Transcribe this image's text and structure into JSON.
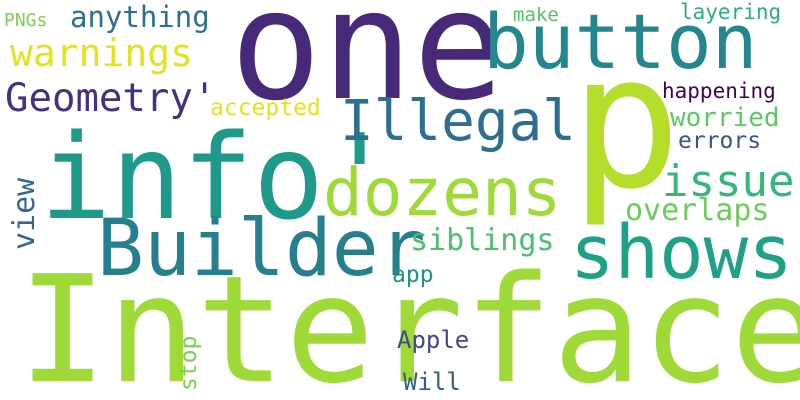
{
  "words": [
    {
      "text": "Interface",
      "color": "#a0da39",
      "orientation": "horizontal"
    },
    {
      "text": "one",
      "color": "#482878",
      "orientation": "horizontal"
    },
    {
      "text": "p",
      "color": "#b5de2b",
      "orientation": "horizontal"
    },
    {
      "text": "info'",
      "color": "#1f9a8a",
      "orientation": "horizontal"
    },
    {
      "text": "Builder",
      "color": "#277f8e",
      "orientation": "horizontal"
    },
    {
      "text": "button",
      "color": "#24868e",
      "orientation": "horizontal"
    },
    {
      "text": "dozens",
      "color": "#a0da39",
      "orientation": "horizontal"
    },
    {
      "text": "shows",
      "color": "#1fa187",
      "orientation": "horizontal"
    },
    {
      "text": "Illegal",
      "color": "#2e6e8e",
      "orientation": "horizontal"
    },
    {
      "text": "Geometry'",
      "color": "#46317e",
      "orientation": "horizontal"
    },
    {
      "text": "warnings",
      "color": "#e1e520",
      "orientation": "horizontal"
    },
    {
      "text": "issue",
      "color": "#35b779",
      "orientation": "horizontal"
    },
    {
      "text": "overlaps",
      "color": "#6ccd5a",
      "orientation": "horizontal"
    },
    {
      "text": "siblings",
      "color": "#4ac16d",
      "orientation": "horizontal"
    },
    {
      "text": "anything",
      "color": "#2c728e",
      "orientation": "horizontal"
    },
    {
      "text": "view",
      "color": "#31688e",
      "orientation": "vertical"
    },
    {
      "text": "accepted",
      "color": "#e5e419",
      "orientation": "horizontal"
    },
    {
      "text": "worried",
      "color": "#5ec962",
      "orientation": "horizontal"
    },
    {
      "text": "errors",
      "color": "#3b528b",
      "orientation": "horizontal"
    },
    {
      "text": "happening",
      "color": "#440154",
      "orientation": "horizontal"
    },
    {
      "text": "layering",
      "color": "#29af7f",
      "orientation": "horizontal"
    },
    {
      "text": "make",
      "color": "#54c568",
      "orientation": "horizontal"
    },
    {
      "text": "PNGs",
      "color": "#7ad151",
      "orientation": "horizontal"
    },
    {
      "text": "app",
      "color": "#21918c",
      "orientation": "horizontal"
    },
    {
      "text": "Apple",
      "color": "#3e4a89",
      "orientation": "horizontal"
    },
    {
      "text": "Will",
      "color": "#365c8d",
      "orientation": "horizontal"
    },
    {
      "text": "stop",
      "color": "#7ad151",
      "orientation": "vertical"
    }
  ]
}
